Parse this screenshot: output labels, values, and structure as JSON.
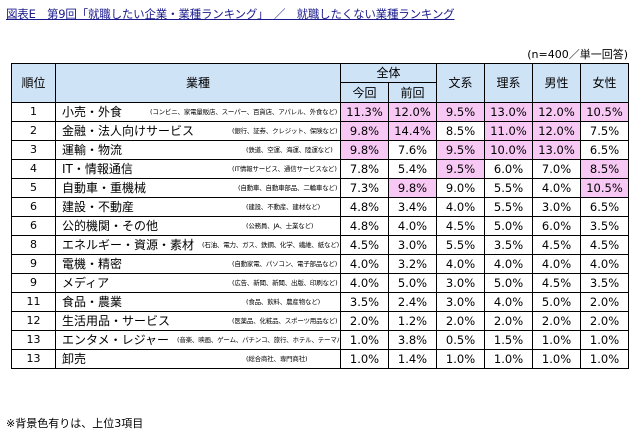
{
  "title": "図表E　第9回「就職したい企業・業種ランキング」　／　就職したくない業種ランキング",
  "sample_note": "(n=400／単一回答)",
  "footnote": "※背景色有りは、上位3項目",
  "headers": {
    "rank": "順位",
    "industry": "業種",
    "overall": "全体",
    "current": "今回",
    "previous": "前回",
    "humanities": "文系",
    "science": "理系",
    "male": "男性",
    "female": "女性"
  },
  "highlight_color": "#f7c8f4",
  "header_bg": "#cfe3f7",
  "rows": [
    {
      "rank": "1",
      "name": "小売・外食",
      "desc": "(コンビニ、家電量販店、スーパー、百貨店、アパレル、外食など)",
      "values": [
        "11.3%",
        "12.0%",
        "9.5%",
        "13.0%",
        "12.0%",
        "10.5%"
      ],
      "hl": [
        true,
        true,
        true,
        true,
        true,
        true
      ]
    },
    {
      "rank": "2",
      "name": "金融・法人向けサービス",
      "desc": "(銀行、証券、クレジット、保険など)",
      "values": [
        "9.8%",
        "14.4%",
        "8.5%",
        "11.0%",
        "12.0%",
        "7.5%"
      ],
      "hl": [
        true,
        true,
        false,
        true,
        true,
        false
      ]
    },
    {
      "rank": "3",
      "name": "運輸・物流",
      "desc": "(鉄道、空運、海運、陸運など)",
      "values": [
        "9.8%",
        "7.6%",
        "9.5%",
        "10.0%",
        "13.0%",
        "6.5%"
      ],
      "hl": [
        true,
        false,
        true,
        true,
        true,
        false
      ]
    },
    {
      "rank": "4",
      "name": "IT・情報通信",
      "desc": "(IT情報サービス、通信サービスなど)",
      "values": [
        "7.8%",
        "5.4%",
        "9.5%",
        "6.0%",
        "7.0%",
        "8.5%"
      ],
      "hl": [
        false,
        false,
        true,
        false,
        false,
        true
      ]
    },
    {
      "rank": "5",
      "name": "自動車・重機械",
      "desc": "(自動車、自動車部品、二輪車など)",
      "values": [
        "7.3%",
        "9.8%",
        "9.0%",
        "5.5%",
        "4.0%",
        "10.5%"
      ],
      "hl": [
        false,
        true,
        false,
        false,
        false,
        true
      ]
    },
    {
      "rank": "6",
      "name": "建設・不動産",
      "desc": "(建設、不動産、建材など)",
      "values": [
        "4.8%",
        "3.4%",
        "4.0%",
        "5.5%",
        "3.0%",
        "6.5%"
      ],
      "hl": [
        false,
        false,
        false,
        false,
        false,
        false
      ]
    },
    {
      "rank": "6",
      "name": "公的機関・その他",
      "desc": "(公務員、JA、士業など)",
      "values": [
        "4.8%",
        "4.0%",
        "4.5%",
        "5.0%",
        "6.0%",
        "3.5%"
      ],
      "hl": [
        false,
        false,
        false,
        false,
        false,
        false
      ]
    },
    {
      "rank": "8",
      "name": "エネルギー・資源・素材",
      "desc": "(石油、電力、ガス、鉄鋼、化学、繊維、紙など)",
      "values": [
        "4.5%",
        "3.0%",
        "5.5%",
        "3.5%",
        "4.5%",
        "4.5%"
      ],
      "hl": [
        false,
        false,
        false,
        false,
        false,
        false
      ]
    },
    {
      "rank": "9",
      "name": "電機・精密",
      "desc": "(自動家電、パソコン、電子部品など)",
      "values": [
        "4.0%",
        "3.2%",
        "4.0%",
        "4.0%",
        "4.0%",
        "4.0%"
      ],
      "hl": [
        false,
        false,
        false,
        false,
        false,
        false
      ]
    },
    {
      "rank": "9",
      "name": "メディア",
      "desc": "(広告、新聞、新聞、出版、印刷など)",
      "values": [
        "4.0%",
        "5.0%",
        "3.0%",
        "5.0%",
        "4.5%",
        "3.5%"
      ],
      "hl": [
        false,
        false,
        false,
        false,
        false,
        false
      ]
    },
    {
      "rank": "11",
      "name": "食品・農業",
      "desc": "(食品、飲料、農産物など)",
      "values": [
        "3.5%",
        "2.4%",
        "3.0%",
        "4.0%",
        "5.0%",
        "2.0%"
      ],
      "hl": [
        false,
        false,
        false,
        false,
        false,
        false
      ]
    },
    {
      "rank": "12",
      "name": "生活用品・サービス",
      "desc": "(医薬品、化粧品、スポーツ用品など)",
      "values": [
        "2.0%",
        "1.2%",
        "2.0%",
        "2.0%",
        "2.0%",
        "2.0%"
      ],
      "hl": [
        false,
        false,
        false,
        false,
        false,
        false
      ]
    },
    {
      "rank": "13",
      "name": "エンタメ・レジャー",
      "desc": "(音楽、映画、ゲーム、パチンコ、旅行、ホテル、テーマパークなど)",
      "values": [
        "1.0%",
        "3.8%",
        "0.5%",
        "1.5%",
        "1.0%",
        "1.0%"
      ],
      "hl": [
        false,
        false,
        false,
        false,
        false,
        false
      ]
    },
    {
      "rank": "13",
      "name": "卸売",
      "desc": "(総合商社、専門商社)",
      "values": [
        "1.0%",
        "1.4%",
        "1.0%",
        "1.0%",
        "1.0%",
        "1.0%"
      ],
      "hl": [
        false,
        false,
        false,
        false,
        false,
        false
      ]
    }
  ]
}
